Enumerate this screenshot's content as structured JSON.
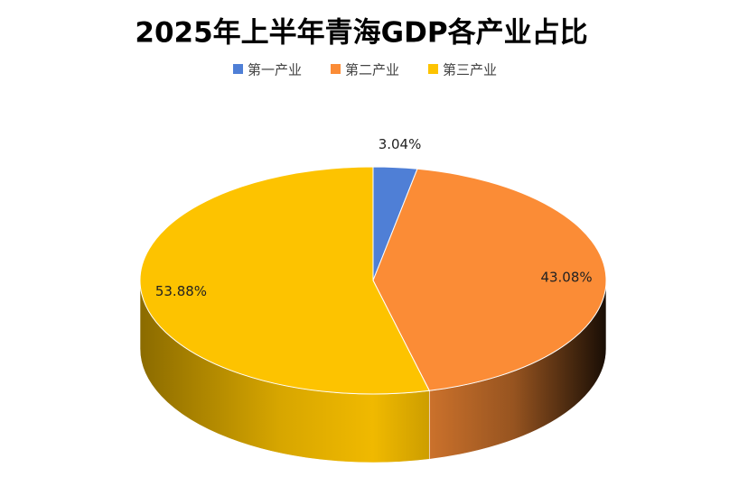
{
  "chart_data": {
    "type": "pie3d",
    "title": "2025年上半年青海GDP各产业占比",
    "categories": [
      "第一产业",
      "第二产业",
      "第三产业"
    ],
    "values": [
      3.04,
      43.08,
      53.88
    ],
    "value_labels": [
      "3.04%",
      "43.08%",
      "53.88%"
    ],
    "colors": [
      "#4f7fd6",
      "#fb8c36",
      "#fdc300"
    ],
    "legend": "top"
  }
}
